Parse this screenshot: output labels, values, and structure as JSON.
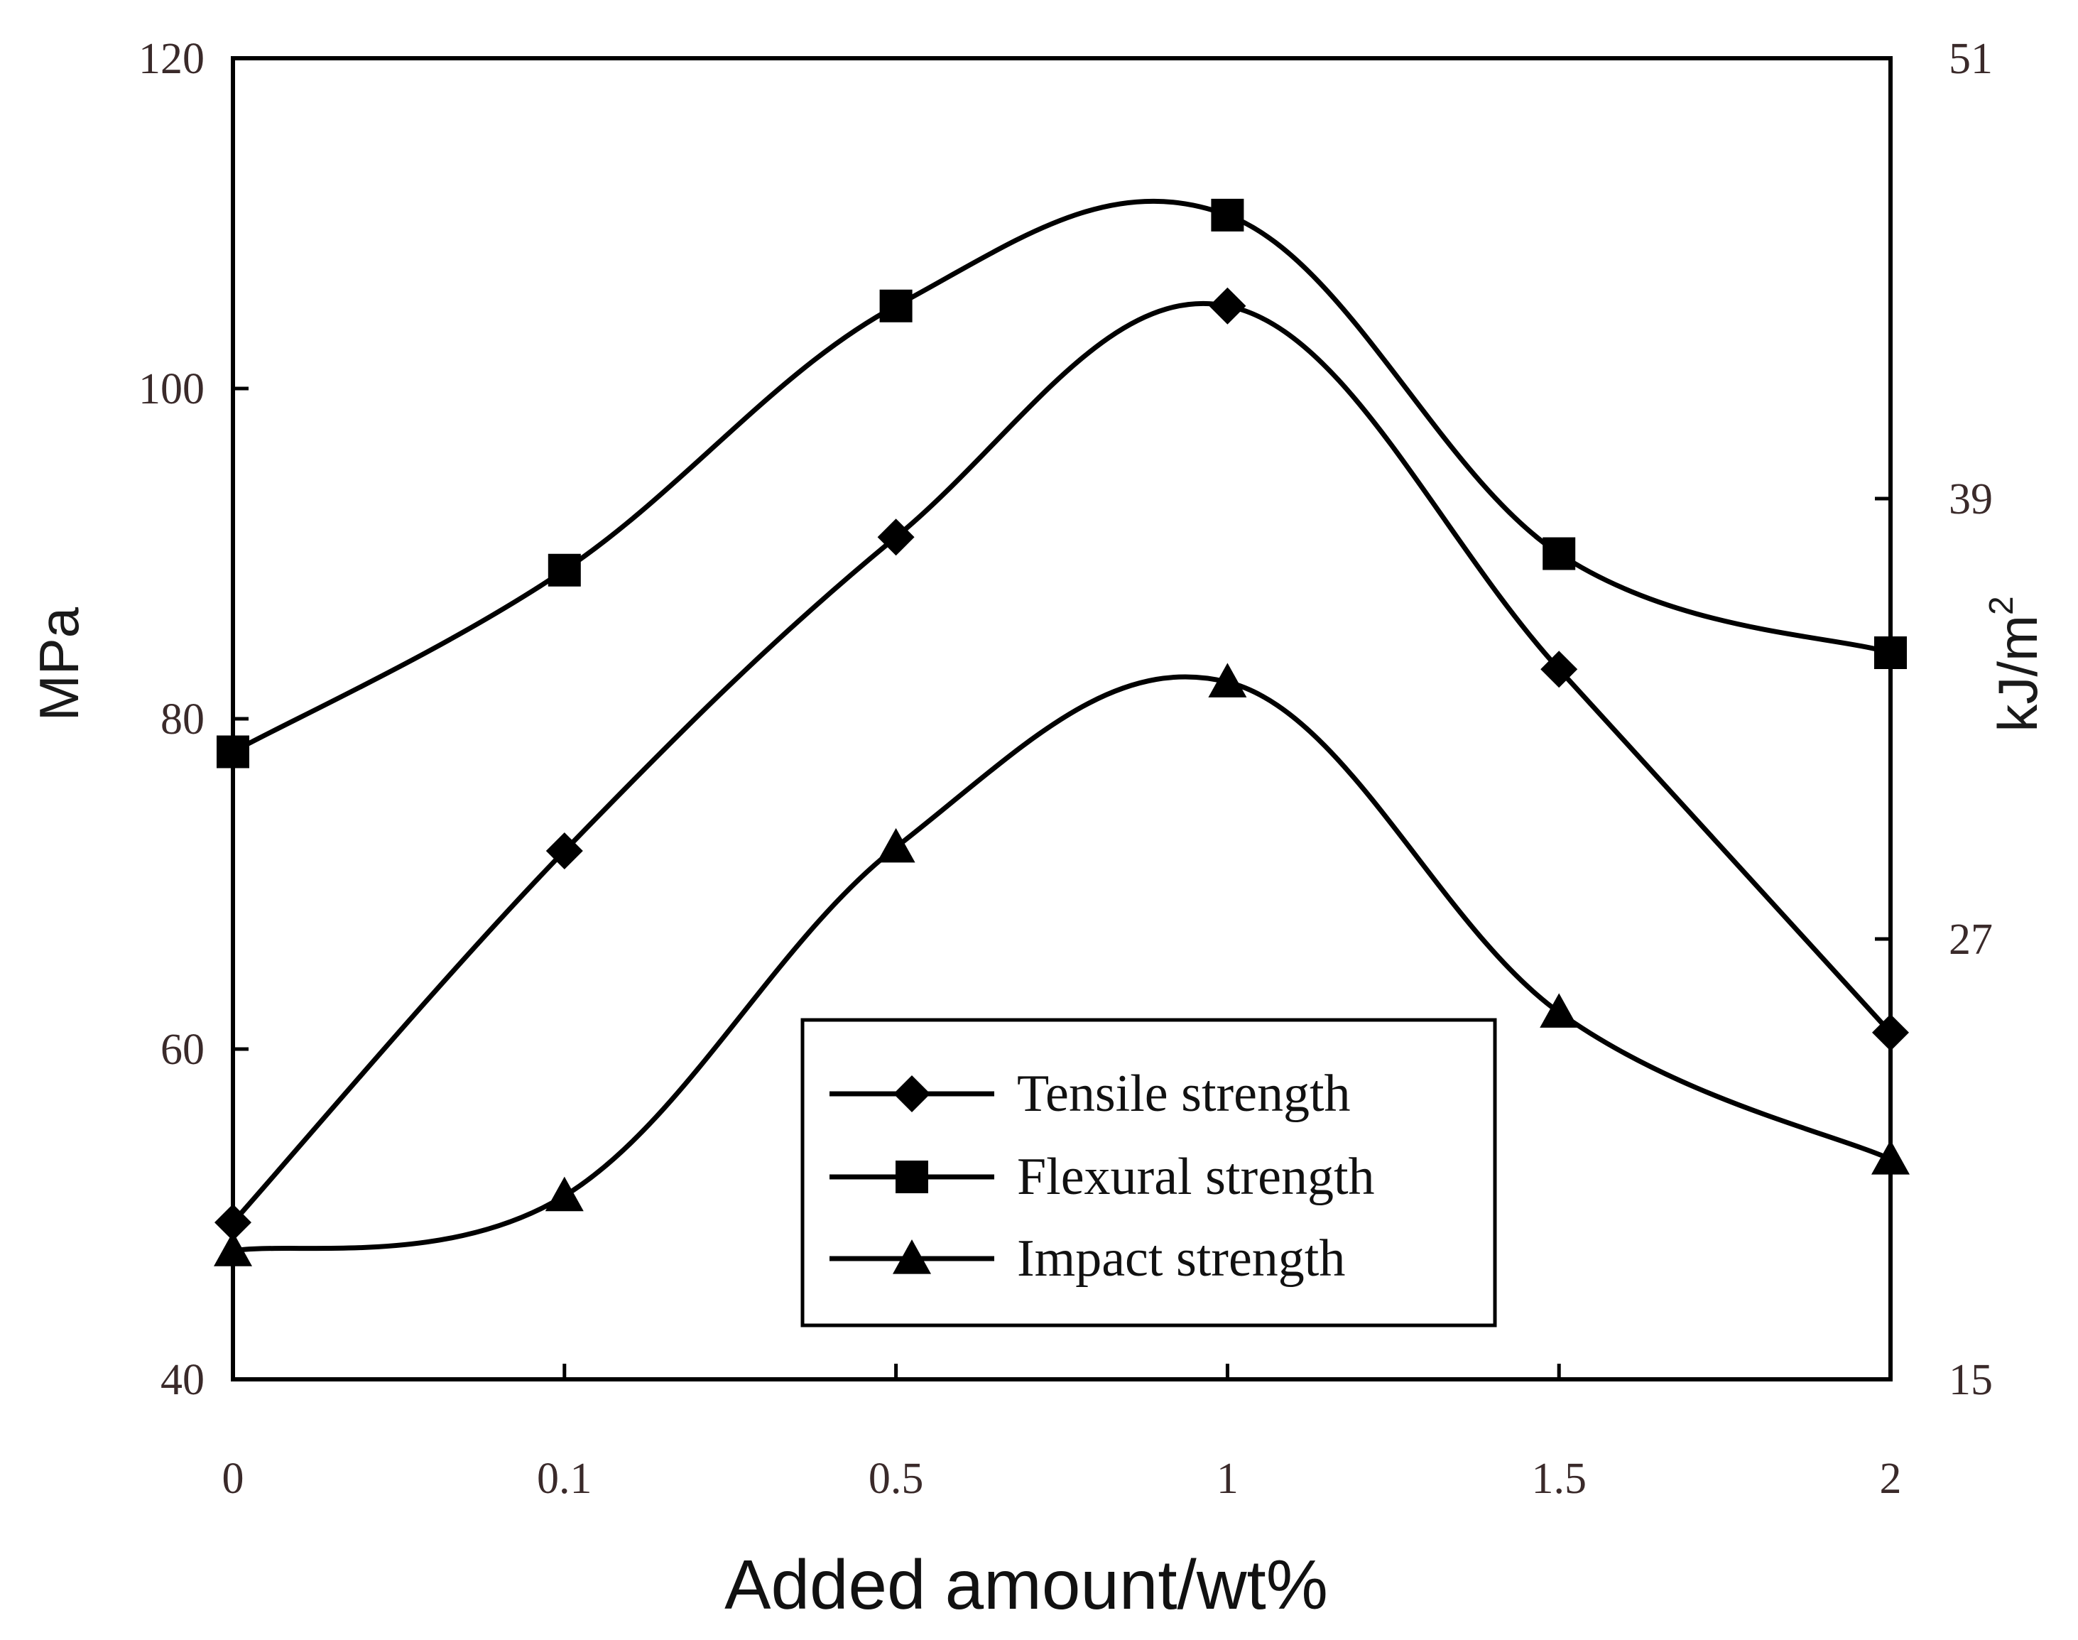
{
  "chart_data": {
    "type": "line",
    "title": "",
    "xlabel": "Added amount/wt%",
    "ylabel_left": "MPa",
    "ylabel_right": "kJ/m",
    "ylabel_right_superscript": "2",
    "categories": [
      "0",
      "0.1",
      "0.5",
      "1",
      "1.5",
      "2"
    ],
    "ylim_left": [
      40,
      120
    ],
    "yticks_left": [
      "40",
      "60",
      "80",
      "100",
      "120"
    ],
    "ylim_right": [
      15,
      51
    ],
    "yticks_right": [
      "15",
      "27",
      "39",
      "51"
    ],
    "grid": false,
    "legend_position": "bottom-right",
    "series": [
      {
        "name": "Tensile strength",
        "marker": "diamond",
        "axis": "left",
        "values": [
          49.5,
          72,
          91,
          105,
          83,
          61
        ]
      },
      {
        "name": "Flexural strength",
        "marker": "square",
        "axis": "left",
        "values": [
          78,
          89,
          105,
          110.5,
          90,
          84
        ]
      },
      {
        "name": "Impact strength",
        "marker": "triangle",
        "axis": "right",
        "values": [
          18.5,
          20,
          29.5,
          34,
          25,
          21
        ]
      }
    ],
    "colors": {
      "line": "#000000",
      "tick_text": "#3a2a2a"
    }
  }
}
